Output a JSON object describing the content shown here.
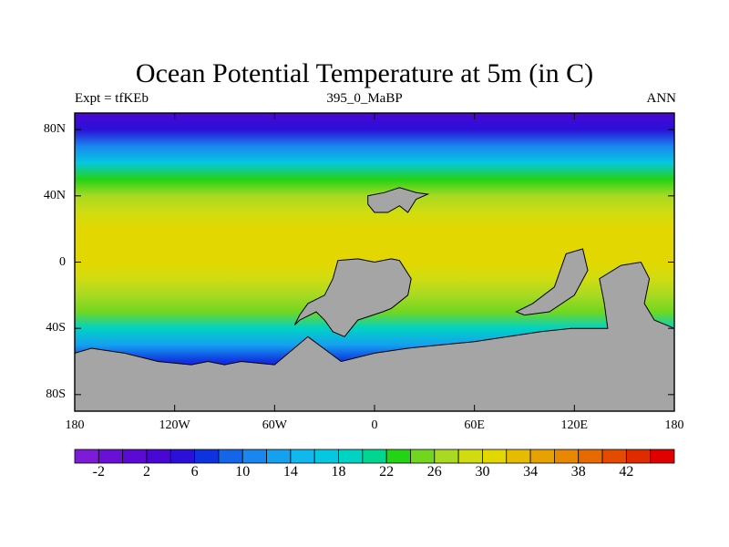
{
  "title": "Ocean Potential Temperature at 5m (in C)",
  "subtitle_left": "Expt = tfKEb",
  "subtitle_center": "395_0_MaBP",
  "subtitle_right": "ANN",
  "map": {
    "projection": "cylindrical equidistant",
    "lon_range": [
      -180,
      180
    ],
    "lat_range": [
      -90,
      90
    ],
    "land_color": "#a5a5a5",
    "lat_ticks": [
      {
        "lat": 80,
        "label": "80N"
      },
      {
        "lat": 40,
        "label": "40N"
      },
      {
        "lat": 0,
        "label": "0"
      },
      {
        "lat": -40,
        "label": "40S"
      },
      {
        "lat": -80,
        "label": "80S"
      }
    ],
    "lon_ticks": [
      {
        "lon": -180,
        "label": "180"
      },
      {
        "lon": -120,
        "label": "120W"
      },
      {
        "lon": -60,
        "label": "60W"
      },
      {
        "lon": 0,
        "label": "0"
      },
      {
        "lon": 60,
        "label": "60E"
      },
      {
        "lon": 120,
        "label": "120E"
      },
      {
        "lon": 180,
        "label": "180"
      }
    ],
    "temperature_by_latitude": [
      {
        "lat": 90,
        "t": 2
      },
      {
        "lat": 80,
        "t": 4
      },
      {
        "lat": 70,
        "t": 10
      },
      {
        "lat": 60,
        "t": 16
      },
      {
        "lat": 50,
        "t": 22
      },
      {
        "lat": 40,
        "t": 26
      },
      {
        "lat": 30,
        "t": 29
      },
      {
        "lat": 20,
        "t": 30
      },
      {
        "lat": 0,
        "t": 30
      },
      {
        "lat": -10,
        "t": 29
      },
      {
        "lat": -20,
        "t": 27
      },
      {
        "lat": -30,
        "t": 24
      },
      {
        "lat": -40,
        "t": 18
      },
      {
        "lat": -50,
        "t": 12
      },
      {
        "lat": -60,
        "t": 7
      },
      {
        "lat": -70,
        "t": 2
      },
      {
        "lat": -80,
        "t": 0
      },
      {
        "lat": -90,
        "t": -2
      }
    ],
    "land_masses": [
      {
        "name": "north-continent",
        "points": [
          [
            -4,
            40
          ],
          [
            6,
            42
          ],
          [
            15,
            45
          ],
          [
            25,
            42
          ],
          [
            32,
            41
          ],
          [
            25,
            38
          ],
          [
            20,
            30
          ],
          [
            15,
            34
          ],
          [
            8,
            30
          ],
          [
            0,
            30
          ],
          [
            -4,
            35
          ]
        ]
      },
      {
        "name": "africa-south-america",
        "points": [
          [
            -22,
            1
          ],
          [
            -10,
            2
          ],
          [
            0,
            0
          ],
          [
            10,
            2
          ],
          [
            15,
            1
          ],
          [
            22,
            -10
          ],
          [
            20,
            -20
          ],
          [
            10,
            -28
          ],
          [
            5,
            -30
          ],
          [
            -10,
            -35
          ],
          [
            -18,
            -45
          ],
          [
            -25,
            -42
          ],
          [
            -30,
            -35
          ],
          [
            -35,
            -30
          ],
          [
            -45,
            -35
          ],
          [
            -48,
            -38
          ],
          [
            -45,
            -32
          ],
          [
            -40,
            -25
          ],
          [
            -30,
            -20
          ],
          [
            -25,
            -10
          ]
        ]
      },
      {
        "name": "island-chain-east",
        "points": [
          [
            115,
            5
          ],
          [
            125,
            8
          ],
          [
            128,
            -5
          ],
          [
            120,
            -20
          ],
          [
            105,
            -30
          ],
          [
            90,
            -32
          ],
          [
            85,
            -30
          ],
          [
            95,
            -25
          ],
          [
            108,
            -15
          ]
        ]
      },
      {
        "name": "east-landmass",
        "points": [
          [
            148,
            -2
          ],
          [
            160,
            0
          ],
          [
            165,
            -10
          ],
          [
            162,
            -25
          ],
          [
            168,
            -35
          ],
          [
            180,
            -40
          ],
          [
            180,
            -90
          ],
          [
            -180,
            -90
          ],
          [
            -180,
            -55
          ],
          [
            -170,
            -52
          ],
          [
            -150,
            -55
          ],
          [
            -130,
            -60
          ],
          [
            -110,
            -62
          ],
          [
            -100,
            -60
          ],
          [
            -90,
            -62
          ],
          [
            -80,
            -60
          ],
          [
            -60,
            -62
          ],
          [
            -40,
            -45
          ],
          [
            -20,
            -60
          ],
          [
            0,
            -55
          ],
          [
            20,
            -52
          ],
          [
            40,
            -50
          ],
          [
            60,
            -48
          ],
          [
            80,
            -45
          ],
          [
            100,
            -42
          ],
          [
            118,
            -40
          ],
          [
            140,
            -40
          ],
          [
            138,
            -25
          ],
          [
            135,
            -10
          ]
        ]
      }
    ]
  },
  "colorbar": {
    "colors": [
      "#7d1bd9",
      "#6a10d6",
      "#5b0ad6",
      "#4a06d4",
      "#2a10d8",
      "#0f32e0",
      "#1565e8",
      "#1a86f0",
      "#15a0f0",
      "#10b8ee",
      "#05c8e0",
      "#00d2c4",
      "#00d690",
      "#24d216",
      "#72d620",
      "#a8da22",
      "#d0dc10",
      "#e2d800",
      "#e6bc00",
      "#e8a200",
      "#e88800",
      "#e66a00",
      "#e44a00",
      "#e02a00",
      "#e00000"
    ],
    "labels": [
      "-2",
      "2",
      "6",
      "10",
      "14",
      "18",
      "22",
      "26",
      "30",
      "34",
      "38",
      "42"
    ]
  }
}
